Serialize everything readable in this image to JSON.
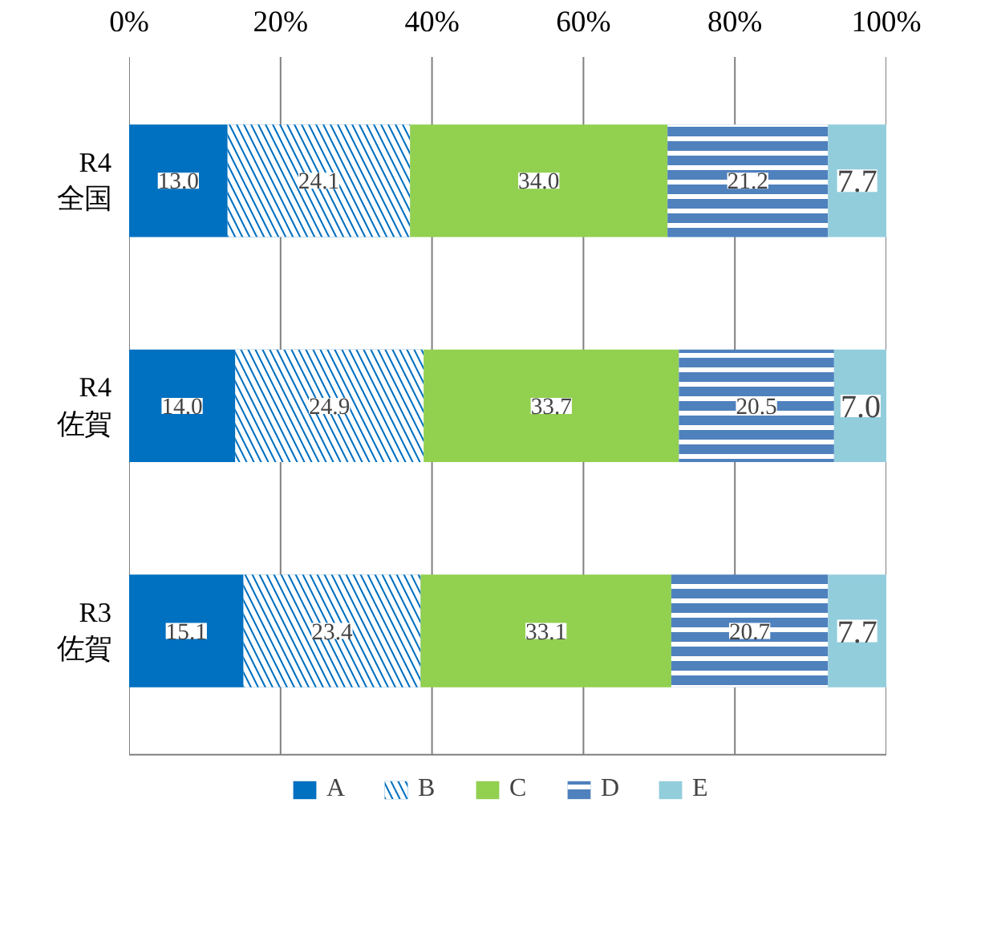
{
  "chart_data": {
    "type": "bar",
    "orientation": "horizontal",
    "stacked": true,
    "categories": [
      "R4\n全国",
      "R4\n佐賀",
      "R3\n佐賀"
    ],
    "series": [
      {
        "name": "A",
        "color": "#0070c0",
        "values": [
          13.0,
          14.0,
          15.1
        ],
        "value_labels": [
          "13.0",
          "14.0",
          "15.1"
        ]
      },
      {
        "name": "B",
        "color": "#0070c0",
        "values": [
          24.1,
          24.9,
          23.4
        ],
        "value_labels": [
          "24.1",
          "24.9",
          "23.4"
        ]
      },
      {
        "name": "C",
        "color": "#92d050",
        "values": [
          34.0,
          33.7,
          33.1
        ],
        "value_labels": [
          "34.0",
          "33.7",
          "33.1"
        ]
      },
      {
        "name": "D",
        "color": "#4f81bd",
        "values": [
          21.2,
          20.5,
          20.7
        ],
        "value_labels": [
          "21.2",
          "20.5",
          "20.7"
        ]
      },
      {
        "name": "E",
        "color": "#92cddc",
        "values": [
          7.7,
          7.0,
          7.7
        ],
        "value_labels": [
          "7.7",
          "7.0",
          "7.7"
        ]
      }
    ],
    "xlim": [
      0,
      100
    ],
    "xticks": [
      {
        "value": 0,
        "label": "0%"
      },
      {
        "value": 20,
        "label": "20%"
      },
      {
        "value": 40,
        "label": "40%"
      },
      {
        "value": 60,
        "label": "60%"
      },
      {
        "value": 80,
        "label": "80%"
      },
      {
        "value": 100,
        "label": "100%"
      }
    ],
    "grid": "x",
    "legend": "bottom"
  }
}
